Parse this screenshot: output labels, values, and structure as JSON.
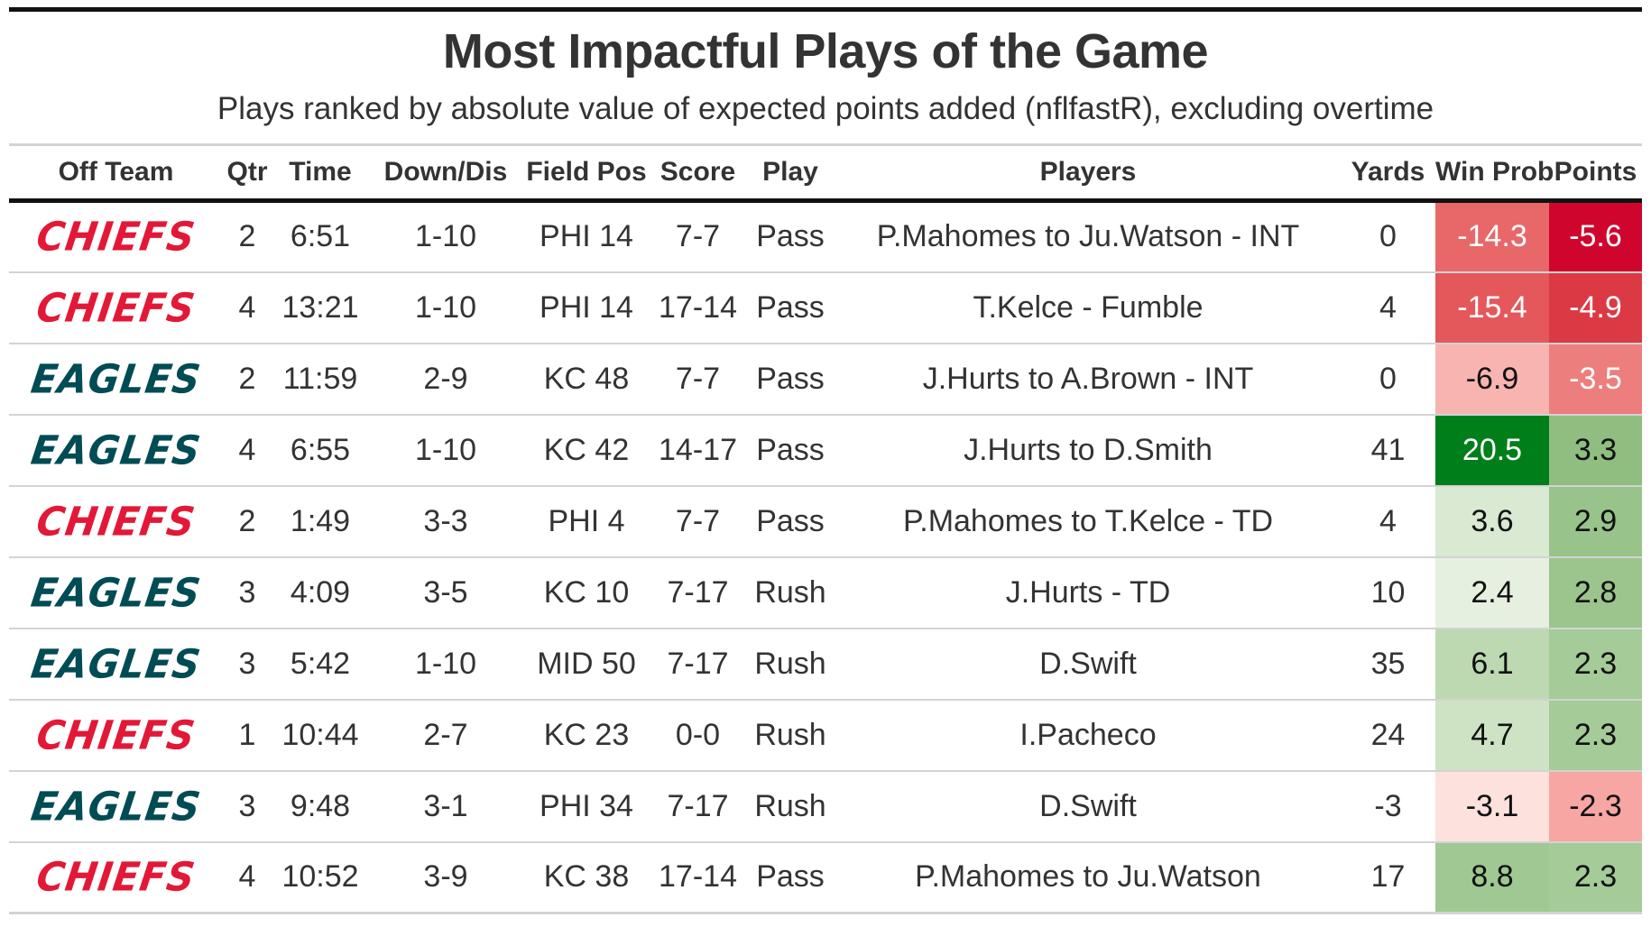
{
  "title": "Most Impactful Plays of the Game",
  "subtitle": "Plays ranked by absolute value of expected points added (nflfastR), excluding overtime",
  "columns": {
    "team": "Off Team",
    "qtr": "Qtr",
    "time": "Time",
    "down": "Down/Dis",
    "field": "Field Pos",
    "score": "Score",
    "play": "Play",
    "players": "Players",
    "yards": "Yards",
    "wp": "Win Prob",
    "points": "Points"
  },
  "team_styles": {
    "CHIEFS": "#e31837",
    "EAGLES": "#004c54"
  },
  "rows": [
    {
      "team": "CHIEFS",
      "qtr": "2",
      "time": "6:51",
      "down": "1-10",
      "field": "PHI 14",
      "score": "7-7",
      "play": "Pass",
      "players": "P.Mahomes to Ju.Watson - INT",
      "yards": "0",
      "wp": "-14.3",
      "points": "-5.6",
      "wp_bg": "#e8686a",
      "wp_fg": "#ffffff",
      "pts_bg": "#d0052e",
      "pts_fg": "#ffffff"
    },
    {
      "team": "CHIEFS",
      "qtr": "4",
      "time": "13:21",
      "down": "1-10",
      "field": "PHI 14",
      "score": "17-14",
      "play": "Pass",
      "players": "T.Kelce - Fumble",
      "yards": "4",
      "wp": "-15.4",
      "points": "-4.9",
      "wp_bg": "#e4585c",
      "wp_fg": "#ffffff",
      "pts_bg": "#db3a44",
      "pts_fg": "#ffffff"
    },
    {
      "team": "EAGLES",
      "qtr": "2",
      "time": "11:59",
      "down": "2-9",
      "field": "KC 48",
      "score": "7-7",
      "play": "Pass",
      "players": "J.Hurts to A.Brown - INT",
      "yards": "0",
      "wp": "-6.9",
      "points": "-3.5",
      "wp_bg": "#f7b4b0",
      "wp_fg": "#111111",
      "pts_bg": "#ec7e7d",
      "pts_fg": "#ffffff"
    },
    {
      "team": "EAGLES",
      "qtr": "4",
      "time": "6:55",
      "down": "1-10",
      "field": "KC 42",
      "score": "14-17",
      "play": "Pass",
      "players": "J.Hurts to D.Smith",
      "yards": "41",
      "wp": "20.5",
      "points": "3.3",
      "wp_bg": "#007e1a",
      "wp_fg": "#ffffff",
      "pts_bg": "#8fbe80",
      "pts_fg": "#111111"
    },
    {
      "team": "CHIEFS",
      "qtr": "2",
      "time": "1:49",
      "down": "3-3",
      "field": "PHI 4",
      "score": "7-7",
      "play": "Pass",
      "players": "P.Mahomes to T.Kelce - TD",
      "yards": "4",
      "wp": "3.6",
      "points": "2.9",
      "wp_bg": "#d9e9d2",
      "wp_fg": "#111111",
      "pts_bg": "#98c38a",
      "pts_fg": "#111111"
    },
    {
      "team": "EAGLES",
      "qtr": "3",
      "time": "4:09",
      "down": "3-5",
      "field": "KC 10",
      "score": "7-17",
      "play": "Rush",
      "players": "J.Hurts - TD",
      "yards": "10",
      "wp": "2.4",
      "points": "2.8",
      "wp_bg": "#e6f0e1",
      "wp_fg": "#111111",
      "pts_bg": "#9bc58d",
      "pts_fg": "#111111"
    },
    {
      "team": "EAGLES",
      "qtr": "3",
      "time": "5:42",
      "down": "1-10",
      "field": "MID 50",
      "score": "7-17",
      "play": "Rush",
      "players": "D.Swift",
      "yards": "35",
      "wp": "6.1",
      "points": "2.3",
      "wp_bg": "#bcd9b1",
      "wp_fg": "#111111",
      "pts_bg": "#a5cb98",
      "pts_fg": "#111111"
    },
    {
      "team": "CHIEFS",
      "qtr": "1",
      "time": "10:44",
      "down": "2-7",
      "field": "KC 23",
      "score": "0-0",
      "play": "Rush",
      "players": "I.Pacheco",
      "yards": "24",
      "wp": "4.7",
      "points": "2.3",
      "wp_bg": "#cde3c4",
      "wp_fg": "#111111",
      "pts_bg": "#a5cb98",
      "pts_fg": "#111111"
    },
    {
      "team": "EAGLES",
      "qtr": "3",
      "time": "9:48",
      "down": "3-1",
      "field": "PHI 34",
      "score": "7-17",
      "play": "Rush",
      "players": "D.Swift",
      "yards": "-3",
      "wp": "-3.1",
      "points": "-2.3",
      "wp_bg": "#fde1dd",
      "wp_fg": "#111111",
      "pts_bg": "#f7a6a3",
      "pts_fg": "#111111"
    },
    {
      "team": "CHIEFS",
      "qtr": "4",
      "time": "10:52",
      "down": "3-9",
      "field": "KC 38",
      "score": "17-14",
      "play": "Pass",
      "players": "P.Mahomes to Ju.Watson",
      "yards": "17",
      "wp": "8.8",
      "points": "2.3",
      "wp_bg": "#9fc892",
      "wp_fg": "#111111",
      "pts_bg": "#a5cb98",
      "pts_fg": "#111111"
    }
  ]
}
